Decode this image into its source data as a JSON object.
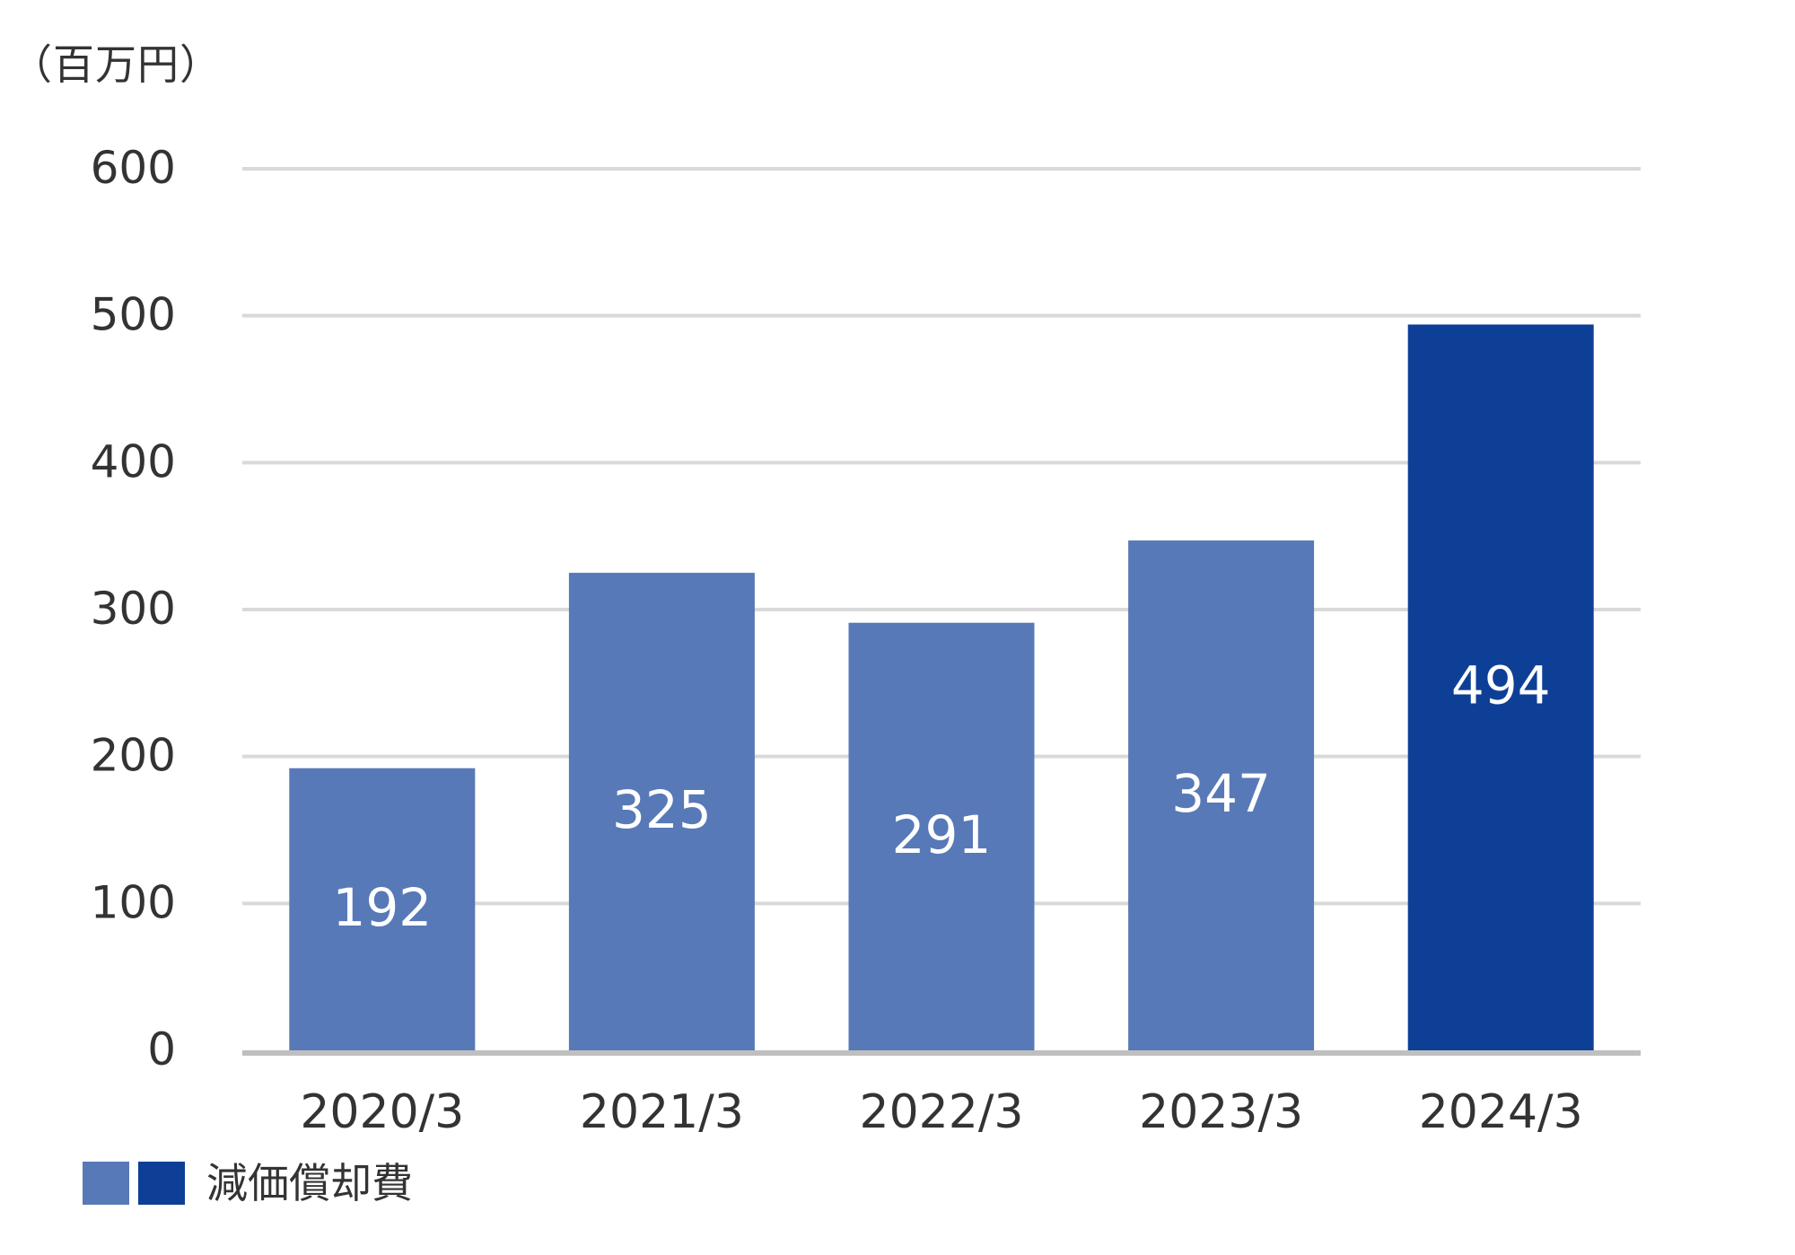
{
  "unit_label": "（百万円）",
  "legend": {
    "label": "減価償却費",
    "swatch_colors": [
      "#5779b7",
      "#0e3f97"
    ]
  },
  "colors": {
    "bar": "#5779b7",
    "bar_highlight": "#0e3f97",
    "gridline": "#d9d9d9",
    "baseline": "#bfbfbf",
    "axis_text": "#333333",
    "bar_label_text": "#ffffff"
  },
  "chart_data": {
    "type": "bar",
    "title": "",
    "xlabel": "",
    "ylabel": "（百万円）",
    "categories": [
      "2020/3",
      "2021/3",
      "2022/3",
      "2023/3",
      "2024/3"
    ],
    "series": [
      {
        "name": "減価償却費",
        "values": [
          192,
          325,
          291,
          347,
          494
        ],
        "data_labels": [
          "192",
          "325",
          "291",
          "347",
          "494"
        ]
      }
    ],
    "highlight_index": 4,
    "ylim": [
      0,
      600
    ],
    "yticks": [
      0,
      100,
      200,
      300,
      400,
      500,
      600
    ],
    "ytick_labels": [
      "0",
      "100",
      "200",
      "300",
      "400",
      "500",
      "600"
    ],
    "grid": true,
    "legend_position": "bottom-left"
  }
}
